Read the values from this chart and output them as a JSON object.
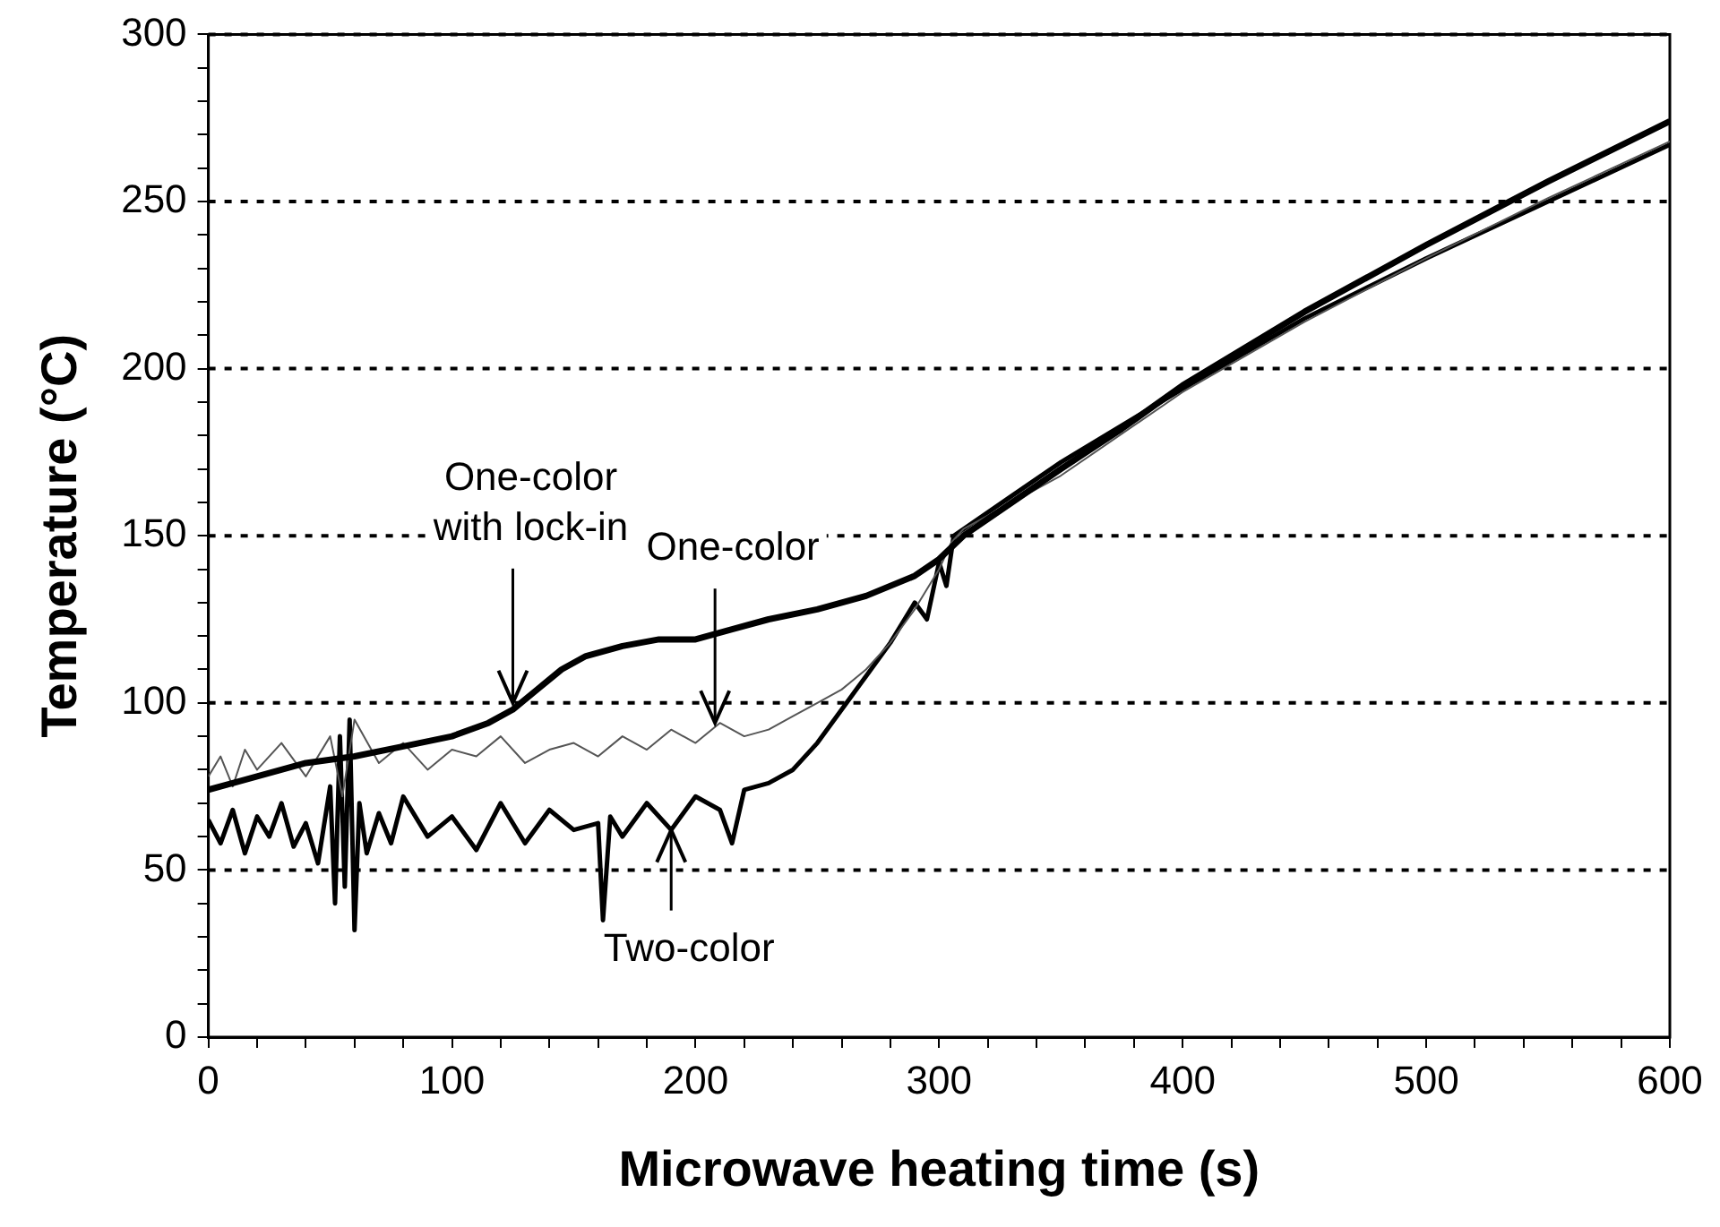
{
  "chart_data": {
    "type": "line",
    "xlabel": "Microwave heating time (s)",
    "ylabel": "Temperature (°C)",
    "xlim": [
      0,
      600
    ],
    "ylim": [
      0,
      300
    ],
    "xticks": [
      0,
      {
        "value": 20,
        "label": null
      },
      {
        "value": 40,
        "label": null
      },
      {
        "value": 60,
        "label": null
      },
      {
        "value": 80,
        "label": null
      },
      100,
      {
        "value": 120,
        "label": null
      },
      {
        "value": 140,
        "label": null
      },
      {
        "value": 160,
        "label": null
      },
      {
        "value": 180,
        "label": null
      },
      200,
      {
        "value": 220,
        "label": null
      },
      {
        "value": 240,
        "label": null
      },
      {
        "value": 260,
        "label": null
      },
      {
        "value": 280,
        "label": null
      },
      300,
      {
        "value": 320,
        "label": null
      },
      {
        "value": 340,
        "label": null
      },
      {
        "value": 360,
        "label": null
      },
      {
        "value": 380,
        "label": null
      },
      400,
      {
        "value": 420,
        "label": null
      },
      {
        "value": 440,
        "label": null
      },
      {
        "value": 460,
        "label": null
      },
      {
        "value": 480,
        "label": null
      },
      500,
      {
        "value": 520,
        "label": null
      },
      {
        "value": 540,
        "label": null
      },
      {
        "value": 560,
        "label": null
      },
      {
        "value": 580,
        "label": null
      },
      600
    ],
    "yticks": [
      0,
      {
        "value": 10,
        "label": null
      },
      {
        "value": 20,
        "label": null
      },
      {
        "value": 30,
        "label": null
      },
      {
        "value": 40,
        "label": null
      },
      50,
      {
        "value": 60,
        "label": null
      },
      {
        "value": 70,
        "label": null
      },
      {
        "value": 80,
        "label": null
      },
      {
        "value": 90,
        "label": null
      },
      100,
      {
        "value": 110,
        "label": null
      },
      {
        "value": 120,
        "label": null
      },
      {
        "value": 130,
        "label": null
      },
      {
        "value": 140,
        "label": null
      },
      150,
      {
        "value": 160,
        "label": null
      },
      {
        "value": 170,
        "label": null
      },
      {
        "value": 180,
        "label": null
      },
      {
        "value": 190,
        "label": null
      },
      200,
      {
        "value": 210,
        "label": null
      },
      {
        "value": 220,
        "label": null
      },
      {
        "value": 230,
        "label": null
      },
      {
        "value": 240,
        "label": null
      },
      250,
      {
        "value": 260,
        "label": null
      },
      {
        "value": 270,
        "label": null
      },
      {
        "value": 280,
        "label": null
      },
      {
        "value": 290,
        "label": null
      },
      300
    ],
    "grid": "y",
    "marker": "none",
    "line_style": "solid",
    "legend": false,
    "series": [
      {
        "color": "#000000",
        "x": [
          0,
          10,
          20,
          40,
          60,
          80,
          100,
          115,
          125,
          135,
          145,
          155,
          170,
          185,
          200,
          215,
          230,
          250,
          270,
          290,
          300,
          310,
          330,
          350,
          375,
          400,
          450,
          500,
          550,
          600
        ],
        "values": [
          74,
          76,
          78,
          82,
          84,
          87,
          90,
          94,
          98,
          104,
          110,
          114,
          117,
          119,
          119,
          122,
          125,
          128,
          132,
          138,
          143,
          150,
          160,
          170,
          182,
          195,
          217,
          237,
          256,
          274
        ]
      },
      {
        "color": "#555555",
        "x": [
          0,
          5,
          10,
          15,
          20,
          30,
          40,
          50,
          55,
          60,
          70,
          80,
          90,
          100,
          110,
          120,
          130,
          140,
          150,
          160,
          170,
          180,
          190,
          200,
          210,
          220,
          230,
          240,
          250,
          260,
          270,
          280,
          290,
          300,
          305,
          310,
          350,
          400,
          450,
          500,
          550,
          600
        ],
        "values": [
          78,
          84,
          75,
          86,
          80,
          88,
          78,
          90,
          72,
          95,
          82,
          88,
          80,
          86,
          84,
          90,
          82,
          86,
          88,
          84,
          90,
          86,
          92,
          88,
          94,
          90,
          92,
          96,
          100,
          104,
          110,
          118,
          128,
          140,
          148,
          152,
          168,
          193,
          214,
          233,
          251,
          268
        ]
      },
      {
        "color": "#000000",
        "x": [
          0,
          5,
          10,
          15,
          20,
          25,
          30,
          35,
          40,
          45,
          50,
          52,
          54,
          56,
          58,
          60,
          62,
          65,
          70,
          75,
          80,
          90,
          100,
          110,
          120,
          130,
          140,
          150,
          160,
          162,
          165,
          170,
          180,
          190,
          200,
          210,
          215,
          220,
          230,
          240,
          250,
          260,
          270,
          280,
          290,
          295,
          300,
          303,
          306,
          310,
          330,
          350,
          400,
          450,
          500,
          550,
          600
        ],
        "values": [
          65,
          58,
          68,
          55,
          66,
          60,
          70,
          57,
          64,
          52,
          75,
          40,
          90,
          45,
          95,
          32,
          70,
          55,
          67,
          58,
          72,
          60,
          66,
          56,
          70,
          58,
          68,
          62,
          64,
          35,
          66,
          60,
          70,
          62,
          72,
          68,
          58,
          74,
          76,
          80,
          88,
          98,
          108,
          118,
          130,
          125,
          142,
          135,
          150,
          152,
          162,
          172,
          194,
          215,
          233,
          250,
          267
        ]
      }
    ],
    "annotations": [
      {
        "text": "One-color\nwith lock-in",
        "x": 125,
        "y": 100
      },
      {
        "text": "One-color",
        "x": 208,
        "y": 94
      },
      {
        "text": "Two-color",
        "x": 190,
        "y": 62
      }
    ]
  }
}
